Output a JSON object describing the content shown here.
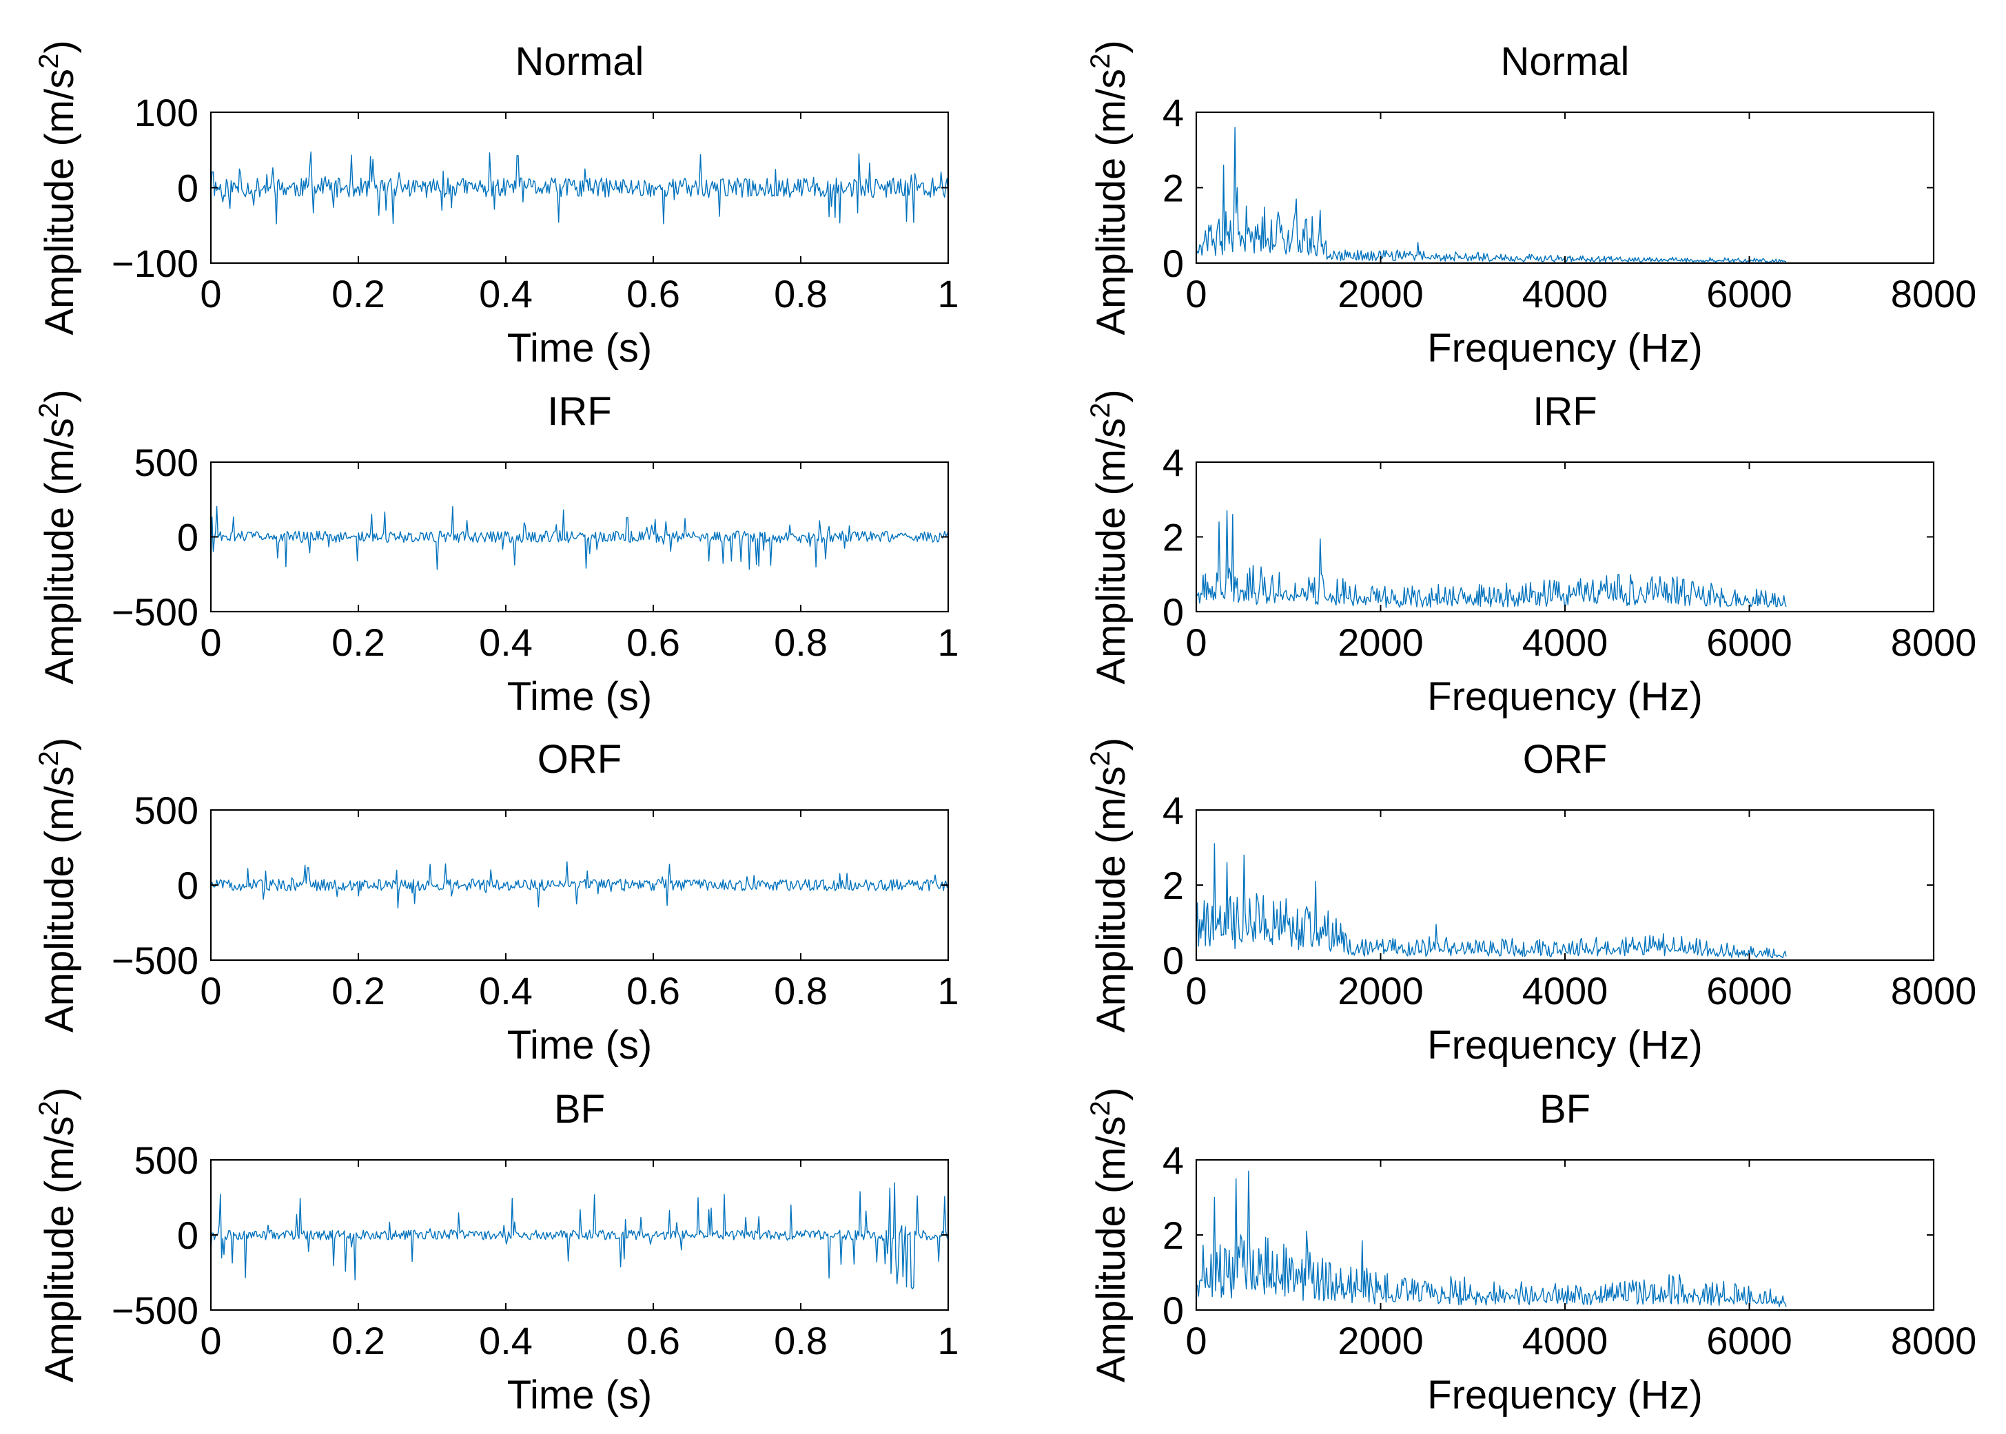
{
  "chart_data": [
    {
      "type": "line",
      "title": "Normal",
      "xlabel": "Time (s)",
      "ylabel": "Amplitude (m/s",
      "ylabel_sup": "2",
      "ylabel_close": ")",
      "xlim": [
        0,
        1
      ],
      "ylim": [
        -100,
        100
      ],
      "xticks": [
        "0",
        "0.2",
        "0.4",
        "0.6",
        "0.8",
        "1"
      ],
      "yticks": [
        "−100",
        "0",
        "100"
      ],
      "signal": {
        "seed": 11,
        "n": 620,
        "base": 13,
        "spike_amp": 48,
        "spike_prob": 0.12,
        "bursts": []
      }
    },
    {
      "type": "line",
      "title": "Normal",
      "xlabel": "Frequency (Hz)",
      "ylabel": "Amplitude (m/s",
      "ylabel_sup": "2",
      "ylabel_close": ")",
      "xlim": [
        0,
        8000
      ],
      "ylim": [
        0,
        4
      ],
      "xticks": [
        "0",
        "2000",
        "4000",
        "6000",
        "8000"
      ],
      "yticks": [
        "0",
        "2",
        "4"
      ],
      "spectrum": {
        "seed": 21,
        "fmax": 6400,
        "n": 520,
        "profile": [
          [
            0,
            1.0
          ],
          [
            500,
            1.8
          ],
          [
            1300,
            1.2
          ],
          [
            1450,
            0.35
          ],
          [
            2500,
            0.35
          ],
          [
            4000,
            0.2
          ],
          [
            6400,
            0.12
          ]
        ],
        "peaks": [
          [
            420,
            3.6
          ],
          [
            300,
            2.6
          ],
          [
            450,
            2.0
          ],
          [
            1080,
            1.7
          ],
          [
            1350,
            1.4
          ],
          [
            2400,
            0.55
          ]
        ]
      }
    },
    {
      "type": "line",
      "title": "IRF",
      "xlabel": "Time (s)",
      "ylabel": "Amplitude (m/s",
      "ylabel_sup": "2",
      "ylabel_close": ")",
      "xlim": [
        0,
        1
      ],
      "ylim": [
        -500,
        500
      ],
      "xticks": [
        "0",
        "0.2",
        "0.4",
        "0.6",
        "0.8",
        "1"
      ],
      "yticks": [
        "−500",
        "0",
        "500"
      ],
      "signal": {
        "seed": 31,
        "n": 620,
        "base": 38,
        "spike_amp": 220,
        "spike_prob": 0.1,
        "bursts": []
      }
    },
    {
      "type": "line",
      "title": "IRF",
      "xlabel": "Frequency (Hz)",
      "ylabel": "Amplitude (m/s",
      "ylabel_sup": "2",
      "ylabel_close": ")",
      "xlim": [
        0,
        8000
      ],
      "ylim": [
        0,
        4
      ],
      "xticks": [
        "0",
        "2000",
        "4000",
        "6000",
        "8000"
      ],
      "yticks": [
        "0",
        "2",
        "4"
      ],
      "spectrum": {
        "seed": 41,
        "fmax": 6400,
        "n": 520,
        "profile": [
          [
            0,
            1.0
          ],
          [
            500,
            1.3
          ],
          [
            1400,
            1.0
          ],
          [
            2000,
            0.7
          ],
          [
            3200,
            0.75
          ],
          [
            4600,
            1.05
          ],
          [
            5500,
            0.9
          ],
          [
            6400,
            0.45
          ]
        ],
        "peaks": [
          [
            250,
            2.4
          ],
          [
            330,
            2.7
          ],
          [
            400,
            2.6
          ],
          [
            1350,
            1.95
          ]
        ]
      }
    },
    {
      "type": "line",
      "title": "ORF",
      "xlabel": "Time (s)",
      "ylabel": "Amplitude (m/s",
      "ylabel_sup": "2",
      "ylabel_close": ")",
      "xlim": [
        0,
        1
      ],
      "ylim": [
        -500,
        500
      ],
      "xticks": [
        "0",
        "0.2",
        "0.4",
        "0.6",
        "0.8",
        "1"
      ],
      "yticks": [
        "−500",
        "0",
        "500"
      ],
      "signal": {
        "seed": 51,
        "n": 620,
        "base": 38,
        "spike_amp": 160,
        "spike_prob": 0.1,
        "bursts": []
      }
    },
    {
      "type": "line",
      "title": "ORF",
      "xlabel": "Frequency (Hz)",
      "ylabel": "Amplitude (m/s",
      "ylabel_sup": "2",
      "ylabel_close": ")",
      "xlim": [
        0,
        8000
      ],
      "ylim": [
        0,
        4
      ],
      "xticks": [
        "0",
        "2000",
        "4000",
        "6000",
        "8000"
      ],
      "yticks": [
        "0",
        "2",
        "4"
      ],
      "spectrum": {
        "seed": 61,
        "fmax": 6400,
        "n": 520,
        "profile": [
          [
            0,
            1.6
          ],
          [
            600,
            1.9
          ],
          [
            1450,
            1.5
          ],
          [
            1700,
            0.6
          ],
          [
            3000,
            0.65
          ],
          [
            4000,
            0.55
          ],
          [
            5000,
            0.75
          ],
          [
            6400,
            0.25
          ]
        ],
        "peaks": [
          [
            200,
            3.1
          ],
          [
            330,
            2.6
          ],
          [
            520,
            2.8
          ],
          [
            1300,
            2.1
          ],
          [
            2600,
            0.95
          ]
        ]
      }
    },
    {
      "type": "line",
      "title": "BF",
      "xlabel": "Time (s)",
      "ylabel": "Amplitude (m/s",
      "ylabel_sup": "2",
      "ylabel_close": ")",
      "xlim": [
        0,
        1
      ],
      "ylim": [
        -500,
        500
      ],
      "xticks": [
        "0",
        "0.2",
        "0.4",
        "0.6",
        "0.8",
        "1"
      ],
      "yticks": [
        "−500",
        "0",
        "500"
      ],
      "signal": {
        "seed": 71,
        "n": 620,
        "base": 32,
        "spike_amp": 300,
        "spike_prob": 0.1,
        "bursts": [
          [
            0.0,
            0.03,
            260
          ],
          [
            0.91,
            0.96,
            380
          ]
        ]
      }
    },
    {
      "type": "line",
      "title": "BF",
      "xlabel": "Frequency (Hz)",
      "ylabel": "Amplitude (m/s",
      "ylabel_sup": "2",
      "ylabel_close": ")",
      "xlim": [
        0,
        8000
      ],
      "ylim": [
        0,
        4
      ],
      "xticks": [
        "0",
        "2000",
        "4000",
        "6000",
        "8000"
      ],
      "yticks": [
        "0",
        "2",
        "4"
      ],
      "spectrum": {
        "seed": 81,
        "fmax": 6400,
        "n": 520,
        "profile": [
          [
            0,
            1.7
          ],
          [
            600,
            2.1
          ],
          [
            1400,
            1.5
          ],
          [
            2000,
            1.0
          ],
          [
            3500,
            0.8
          ],
          [
            4300,
            0.65
          ],
          [
            5200,
            1.0
          ],
          [
            6400,
            0.5
          ]
        ],
        "peaks": [
          [
            200,
            3.0
          ],
          [
            430,
            3.5
          ],
          [
            570,
            3.7
          ],
          [
            1200,
            2.1
          ],
          [
            1800,
            1.85
          ]
        ]
      }
    }
  ],
  "colors": {
    "signal": "#0072BD",
    "axis": "#000000",
    "background": "#ffffff"
  }
}
